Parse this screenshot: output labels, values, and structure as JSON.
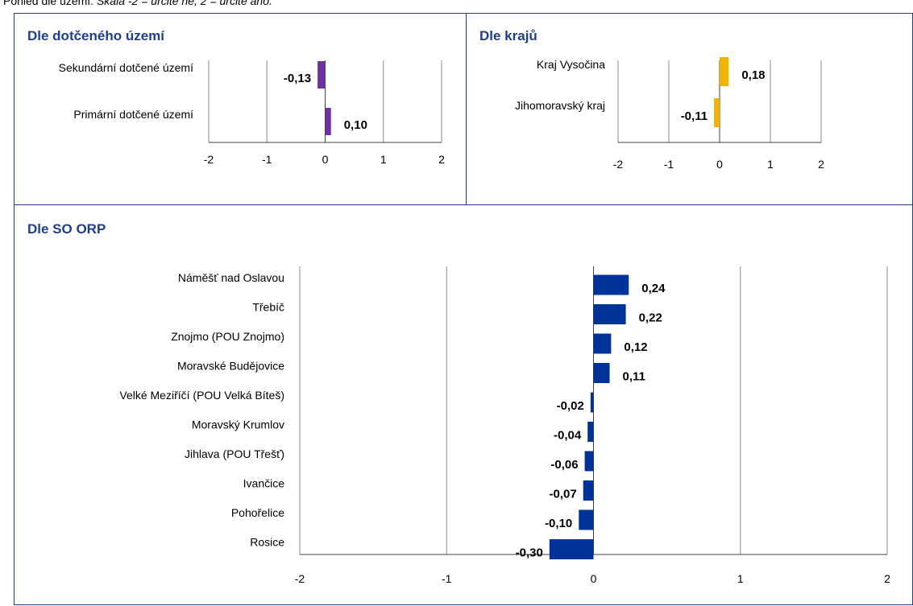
{
  "caption": {
    "prefix": "Pohled dle území: ",
    "italic": "Škála -2 = určitě ne, 2 = určitě ano."
  },
  "colors": {
    "purple": "#7030a0",
    "yellow": "#f2b300",
    "navy": "#003399",
    "border": "#1f3e8c"
  },
  "panels": {
    "area": {
      "title": "Dle dotčeného území"
    },
    "region": {
      "title": "Dle krajů"
    },
    "orp": {
      "title": "Dle SO ORP"
    }
  },
  "chart_data": [
    {
      "type": "bar",
      "orientation": "horizontal",
      "panel": "area",
      "categories": [
        "Sekundární dotčené území",
        "Primární dotčené území"
      ],
      "values": [
        -0.13,
        0.1
      ],
      "value_labels": [
        "-0,13",
        "0,10"
      ],
      "xlim": [
        -2,
        2
      ],
      "xticks": [
        -2,
        -1,
        0,
        1,
        2
      ],
      "color": "#7030a0",
      "grid": true
    },
    {
      "type": "bar",
      "orientation": "horizontal",
      "panel": "region",
      "categories": [
        "Kraj Vysočina",
        "Jihomoravský kraj"
      ],
      "values": [
        0.18,
        -0.11
      ],
      "value_labels": [
        "0,18",
        "-0,11"
      ],
      "xlim": [
        -2,
        2
      ],
      "xticks": [
        -2,
        -1,
        0,
        1,
        2
      ],
      "color": "#f2b300",
      "grid": true
    },
    {
      "type": "bar",
      "orientation": "horizontal",
      "panel": "orp",
      "categories": [
        "Náměšť nad Oslavou",
        "Třebíč",
        "Znojmo (POU Znojmo)",
        "Moravské Budějovice",
        "Velké Meziříčí (POU Velká Bíteš)",
        "Moravský Krumlov",
        "Jihlava (POU Třešť)",
        "Ivančice",
        "Pohořelice",
        "Rosice"
      ],
      "values": [
        0.24,
        0.22,
        0.12,
        0.11,
        -0.02,
        -0.04,
        -0.06,
        -0.07,
        -0.1,
        -0.3
      ],
      "value_labels": [
        "0,24",
        "0,22",
        "0,12",
        "0,11",
        "-0,02",
        "-0,04",
        "-0,06",
        "-0,07",
        "-0,10",
        "-0,30"
      ],
      "xlim": [
        -2,
        2
      ],
      "xticks": [
        -2,
        -1,
        0,
        1,
        2
      ],
      "color": "#003399",
      "grid": true
    }
  ]
}
